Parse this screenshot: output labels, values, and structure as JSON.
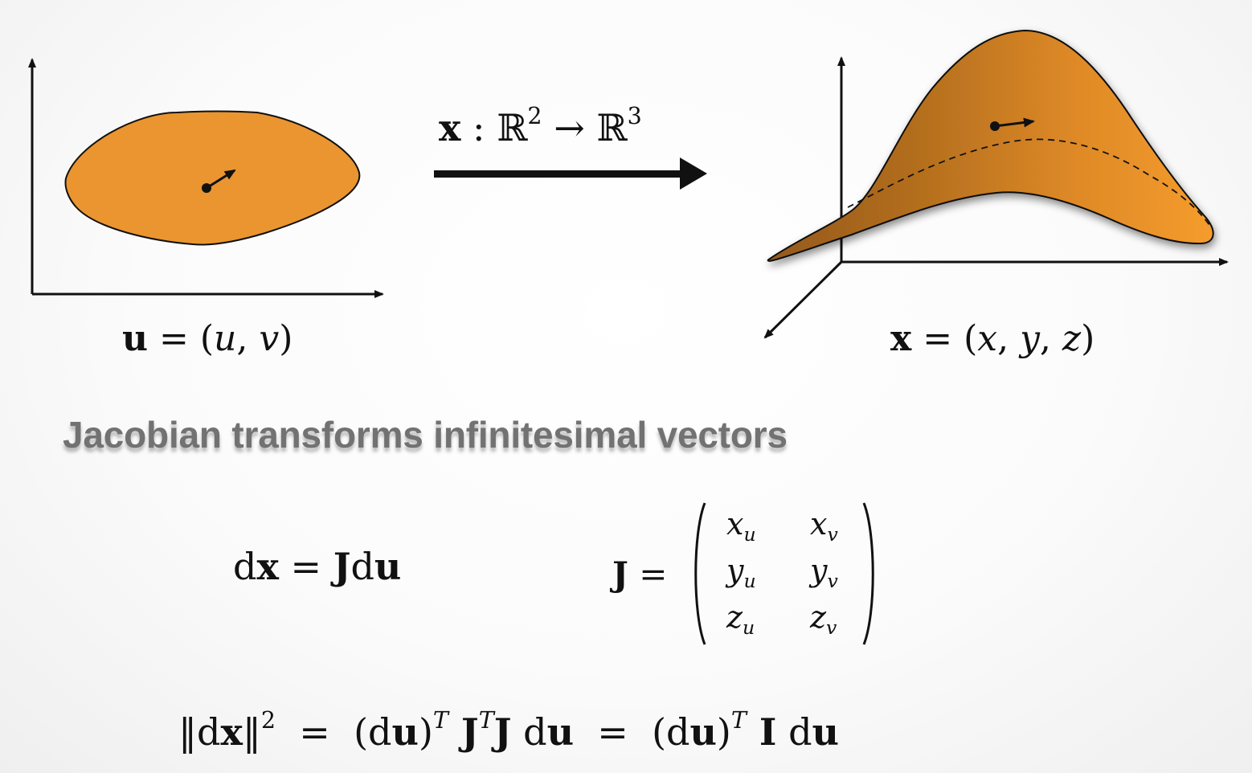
{
  "left_figure": {
    "label_bold": "u",
    "label_rest": " = (",
    "var1": "u",
    "sep": ", ",
    "var2": "v",
    "close": ")"
  },
  "map_label": {
    "bold": "x",
    "colon": " : ",
    "domain": "ℝ",
    "domain_exp": "2",
    "arrow": " → ",
    "codomain": "ℝ",
    "codomain_exp": "3"
  },
  "right_figure": {
    "label_bold": "x",
    "label_rest": " = (",
    "var1": "x",
    "sep1": ", ",
    "var2": "y",
    "sep2": ", ",
    "var3": "z",
    "close": ")"
  },
  "heading": "Jacobian transforms infinitesimal vectors",
  "eq1": {
    "d1": "d",
    "x": "x",
    "eq": " = ",
    "J": "J",
    "d2": "d",
    "u": "u"
  },
  "jacobian": {
    "J": "J",
    "eq": " = ",
    "cells": [
      [
        "x",
        "u",
        "x",
        "v"
      ],
      [
        "y",
        "u",
        "y",
        "v"
      ],
      [
        "z",
        "u",
        "z",
        "v"
      ]
    ]
  },
  "eq2": {
    "norm_open": "‖d",
    "x": "x",
    "norm_close": "‖",
    "pow": "2",
    "eq1": "  =  ",
    "p1": "(d",
    "u1": "u",
    "p1c": ")",
    "T1": "T",
    "J1": " J",
    "T2": "T",
    "J2": "J",
    "d3": " d",
    "u3": "u",
    "eq2": "  =  ",
    "p2": "(d",
    "u4": "u",
    "p2c": ")",
    "T3": "T",
    "I": " I",
    "d5": " d",
    "u5": "u"
  },
  "colors": {
    "shape_fill": "#ea9530",
    "surface_dark": "#9a5f1a",
    "surface_light": "#f59b2c",
    "ink": "#111111",
    "heading": "#727272"
  }
}
